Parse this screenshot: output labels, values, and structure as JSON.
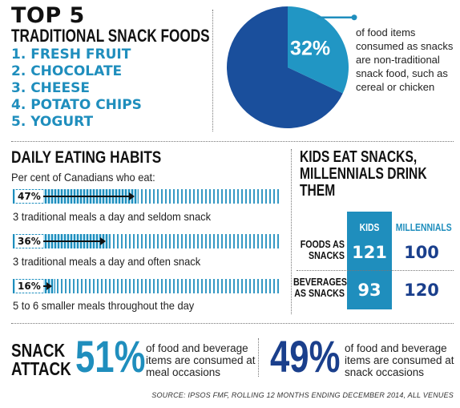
{
  "top_list": {
    "title": "TOP 5",
    "subtitle": "TRADITIONAL SNACK FOODS",
    "items": [
      "1. FRESH FRUIT",
      "2. CHOCOLATE",
      "3. CHEESE",
      "4. POTATO CHIPS",
      "5. YOGURT"
    ]
  },
  "pie": {
    "percent_label": "32%",
    "text": "of food items consumed as snacks are non-traditional snack food, such as cereal or chicken"
  },
  "habits": {
    "title": "DAILY EATING HABITS",
    "subtitle": "Per cent of Canadians who eat:"
  },
  "kids": {
    "title": "KIDS EAT SNACKS,\nMILLENNIALS DRINK\nTHEM",
    "col_kids": "KIDS",
    "col_millennials": "MILLENNIALS",
    "row1_label": "FOODS AS SNACKS",
    "row2_label": "BEVERAGES AS SNACKS"
  },
  "snack_attack": {
    "title": "SNACK\nATTACK",
    "meal_pct": "51%",
    "meal_text": "of food and beverage items are consumed at meal occasions",
    "snack_pct": "49%",
    "snack_text": "of food and beverage items are consumed at snack occasions"
  },
  "source": "SOURCE: IPSOS FMF, ROLLING 12 MONTHS ENDING DECEMBER 2014, ALL VENUES",
  "colors": {
    "accent": "#1f8ebd",
    "navy": "#1a3f8c"
  },
  "chart_data": [
    {
      "type": "pie",
      "categories": [
        "non-traditional snack food",
        "other"
      ],
      "values": [
        32,
        68
      ],
      "colors": [
        "#2196c4",
        "#1a4f9c"
      ]
    },
    {
      "type": "bar",
      "categories": [
        "3 traditional meals a day and seldom snack",
        "3 traditional meals a day and often snack",
        "5 to 6 smaller meals throughout the day"
      ],
      "values": [
        47,
        36,
        16
      ],
      "value_labels": [
        "47%",
        "36%",
        "16%"
      ],
      "ylim": [
        0,
        100
      ]
    },
    {
      "type": "table",
      "columns": [
        "KIDS",
        "MILLENNIALS"
      ],
      "rows": [
        "FOODS AS SNACKS",
        "BEVERAGES AS SNACKS"
      ],
      "values": [
        [
          121,
          100
        ],
        [
          93,
          120
        ]
      ],
      "value_labels": [
        [
          "121",
          "100"
        ],
        [
          "93",
          "120"
        ]
      ]
    }
  ]
}
